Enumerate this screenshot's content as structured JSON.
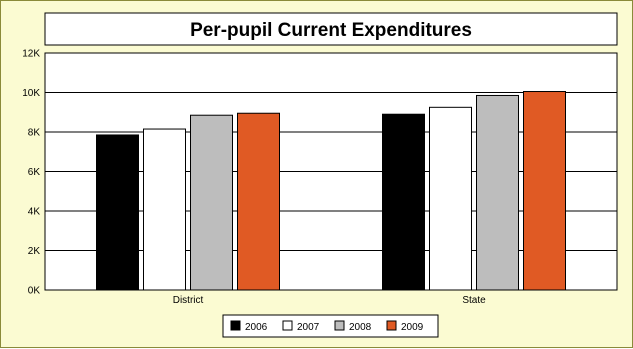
{
  "chart_data": {
    "type": "bar",
    "title": "Per-pupil Current Expenditures",
    "xlabel": "",
    "ylabel": "",
    "categories": [
      "District",
      "State"
    ],
    "series": [
      {
        "name": "2006",
        "values": [
          7850,
          8900
        ],
        "color": "#000000"
      },
      {
        "name": "2007",
        "values": [
          8150,
          9250
        ],
        "color": "#ffffff"
      },
      {
        "name": "2008",
        "values": [
          8850,
          9850
        ],
        "color": "#bdbdbd"
      },
      {
        "name": "2009",
        "values": [
          8950,
          10050
        ],
        "color": "#e05a24"
      }
    ],
    "ylim": [
      0,
      12000
    ],
    "yticks": [
      0,
      2000,
      4000,
      6000,
      8000,
      10000,
      12000
    ],
    "ytick_labels": [
      "0K",
      "2K",
      "4K",
      "6K",
      "8K",
      "10K",
      "12K"
    ],
    "grid": true,
    "legend_position": "bottom-center"
  },
  "colors": {
    "frame_background": "#fbfbd2",
    "frame_border": "#8a8a3a",
    "plot_background": "#ffffff"
  }
}
